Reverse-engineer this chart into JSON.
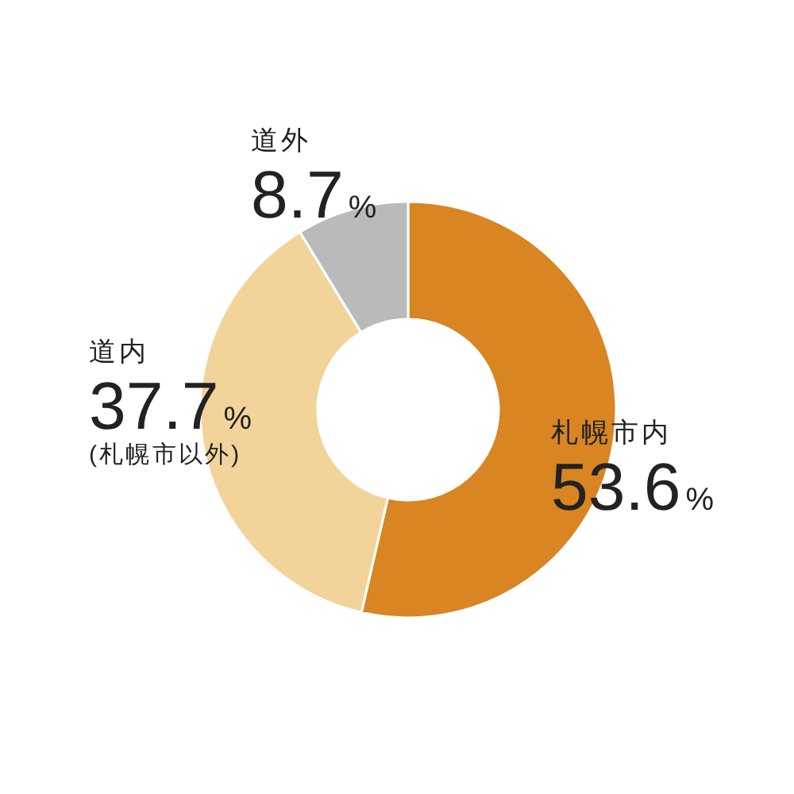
{
  "chart_data": {
    "type": "donut",
    "categories": [
      "札幌市内",
      "道内",
      "道外"
    ],
    "values": [
      53.6,
      37.7,
      8.7
    ],
    "colors": [
      "#d88522",
      "#f2d49a",
      "#bababa"
    ],
    "value_labels": [
      "53.6%",
      "37.7%",
      "8.7%"
    ],
    "annotations": [
      "(札幌市以外)"
    ]
  }
}
